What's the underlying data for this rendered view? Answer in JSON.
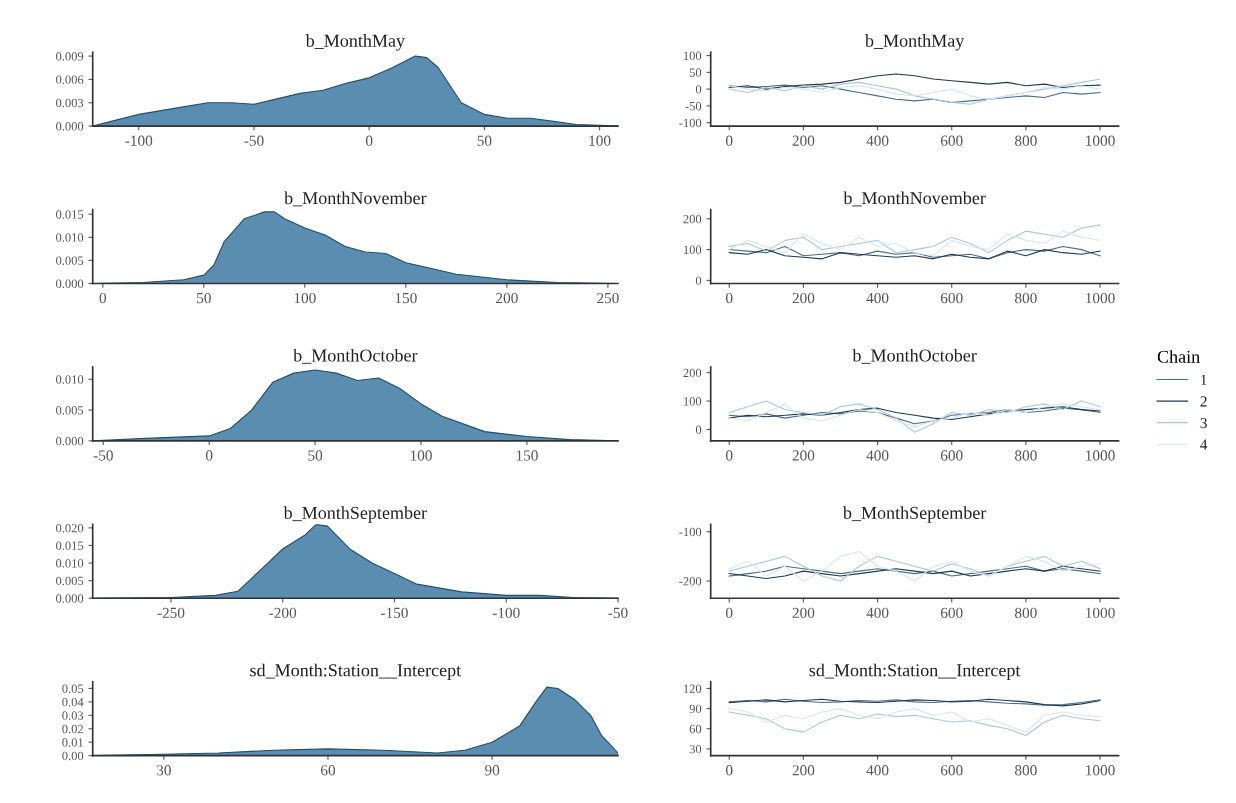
{
  "chart_data": [
    {
      "type": "area",
      "title": "b_MonthMay",
      "x": [
        -120,
        -100,
        -80,
        -70,
        -60,
        -50,
        -40,
        -30,
        -20,
        -10,
        0,
        10,
        20,
        25,
        30,
        40,
        50,
        60,
        70,
        80,
        90,
        100,
        108
      ],
      "series": [
        {
          "color": "#5b8db0",
          "values": [
            0,
            0.0015,
            0.0025,
            0.003,
            0.003,
            0.0028,
            0.0035,
            0.0042,
            0.0046,
            0.0055,
            0.0062,
            0.0075,
            0.009,
            0.0088,
            0.0075,
            0.003,
            0.0015,
            0.001,
            0.001,
            0.0006,
            0.0002,
            0.0001,
            0
          ]
        }
      ],
      "xlim": [
        -120,
        108
      ],
      "xticks": [
        -100,
        -50,
        0,
        50,
        100
      ],
      "ylim": [
        0,
        0.0095
      ],
      "yticks": [
        {
          "value": 0,
          "label": "0.000"
        },
        {
          "value": 0.003,
          "label": "0.003"
        },
        {
          "value": 0.006,
          "label": "0.006"
        },
        {
          "value": 0.009,
          "label": "0.009"
        }
      ]
    },
    {
      "type": "line",
      "title": "b_MonthMay",
      "x": [
        0,
        50,
        100,
        150,
        200,
        250,
        300,
        350,
        400,
        450,
        500,
        550,
        600,
        650,
        700,
        750,
        800,
        850,
        900,
        950,
        1000
      ],
      "series": [
        {
          "name": "1",
          "color": "#4a6d8c",
          "values": [
            10,
            5,
            8,
            12,
            5,
            10,
            0,
            -10,
            -20,
            -30,
            -35,
            -30,
            -40,
            -35,
            -30,
            -25,
            -20,
            -25,
            -10,
            -15,
            -10
          ]
        },
        {
          "name": "2",
          "color": "#1f3a52",
          "values": [
            5,
            10,
            0,
            8,
            12,
            15,
            20,
            30,
            40,
            45,
            40,
            30,
            25,
            20,
            15,
            20,
            10,
            15,
            5,
            10,
            12
          ]
        },
        {
          "name": "3",
          "color": "#a9c7de",
          "values": [
            0,
            -10,
            5,
            -5,
            10,
            0,
            15,
            20,
            10,
            0,
            -20,
            -30,
            -40,
            -45,
            -30,
            -20,
            -10,
            0,
            10,
            20,
            30
          ]
        },
        {
          "name": "4",
          "color": "#d6e6f2",
          "values": [
            10,
            0,
            -5,
            5,
            0,
            -10,
            5,
            10,
            0,
            -15,
            -20,
            -10,
            0,
            -20,
            -30,
            -20,
            -10,
            5,
            0,
            10,
            0
          ]
        }
      ],
      "xlim": [
        -50,
        1050
      ],
      "xticks": [
        0,
        200,
        400,
        600,
        800,
        1000
      ],
      "ylim": [
        -110,
        110
      ],
      "yticks": [
        -100,
        -50,
        0,
        50,
        100
      ],
      "legend": "right",
      "legend_title": "Chain"
    },
    {
      "type": "area",
      "title": "b_MonthNovember",
      "x": [
        -5,
        20,
        40,
        50,
        55,
        60,
        70,
        80,
        85,
        90,
        100,
        110,
        120,
        130,
        140,
        150,
        160,
        175,
        200,
        225,
        255
      ],
      "series": [
        {
          "color": "#5b8db0",
          "values": [
            0,
            0.0002,
            0.0008,
            0.0018,
            0.004,
            0.009,
            0.014,
            0.0155,
            0.0155,
            0.014,
            0.012,
            0.0105,
            0.008,
            0.0068,
            0.0065,
            0.0045,
            0.0035,
            0.002,
            0.0008,
            0.0002,
            0
          ]
        }
      ],
      "xlim": [
        -5,
        255
      ],
      "xticks": [
        0,
        50,
        100,
        150,
        200,
        250
      ],
      "ylim": [
        0,
        0.016
      ],
      "yticks": [
        {
          "value": 0,
          "label": "0.000"
        },
        {
          "value": 0.005,
          "label": "0.005"
        },
        {
          "value": 0.01,
          "label": "0.010"
        },
        {
          "value": 0.015,
          "label": "0.015"
        }
      ]
    },
    {
      "type": "line",
      "title": "b_MonthNovember",
      "x": [
        0,
        50,
        100,
        150,
        200,
        250,
        300,
        350,
        400,
        450,
        500,
        550,
        600,
        650,
        700,
        750,
        800,
        850,
        900,
        950,
        1000
      ],
      "series": [
        {
          "name": "1",
          "color": "#4a6d8c",
          "values": [
            100,
            95,
            90,
            110,
            80,
            85,
            90,
            80,
            95,
            85,
            90,
            75,
            80,
            85,
            70,
            90,
            100,
            95,
            110,
            100,
            80
          ]
        },
        {
          "name": "2",
          "color": "#1f3a52",
          "values": [
            90,
            85,
            100,
            80,
            75,
            70,
            90,
            85,
            80,
            75,
            80,
            70,
            85,
            75,
            70,
            95,
            80,
            100,
            90,
            85,
            95
          ]
        },
        {
          "name": "3",
          "color": "#a9c7de",
          "values": [
            110,
            120,
            95,
            130,
            140,
            100,
            110,
            120,
            130,
            90,
            100,
            110,
            140,
            120,
            90,
            130,
            160,
            150,
            140,
            170,
            180
          ]
        },
        {
          "name": "4",
          "color": "#d6e6f2",
          "values": [
            100,
            130,
            110,
            90,
            150,
            120,
            100,
            140,
            110,
            120,
            90,
            80,
            130,
            110,
            100,
            150,
            130,
            120,
            160,
            140,
            130
          ]
        }
      ],
      "xlim": [
        -50,
        1050
      ],
      "xticks": [
        0,
        200,
        400,
        600,
        800,
        1000
      ],
      "ylim": [
        -10,
        230
      ],
      "yticks": [
        0,
        100,
        200
      ]
    },
    {
      "type": "area",
      "title": "b_MonthOctober",
      "x": [
        -55,
        -30,
        0,
        10,
        20,
        30,
        40,
        50,
        60,
        70,
        80,
        90,
        100,
        110,
        130,
        150,
        170,
        193
      ],
      "series": [
        {
          "color": "#5b8db0",
          "values": [
            0,
            0.0004,
            0.0008,
            0.002,
            0.005,
            0.0095,
            0.011,
            0.0115,
            0.011,
            0.0098,
            0.0102,
            0.0085,
            0.006,
            0.004,
            0.0015,
            0.0007,
            0.0002,
            0
          ]
        }
      ],
      "xlim": [
        -55,
        193
      ],
      "xticks": [
        -50,
        0,
        50,
        100,
        150
      ],
      "ylim": [
        0,
        0.012
      ],
      "yticks": [
        {
          "value": 0,
          "label": "0.000"
        },
        {
          "value": 0.005,
          "label": "0.005"
        },
        {
          "value": 0.01,
          "label": "0.010"
        }
      ]
    },
    {
      "type": "line",
      "title": "b_MonthOctober",
      "x": [
        0,
        50,
        100,
        150,
        200,
        250,
        300,
        350,
        400,
        450,
        500,
        550,
        600,
        650,
        700,
        750,
        800,
        850,
        900,
        950,
        1000
      ],
      "series": [
        {
          "name": "1",
          "color": "#4a6d8c",
          "values": [
            50,
            45,
            55,
            40,
            50,
            60,
            55,
            65,
            60,
            40,
            20,
            30,
            50,
            55,
            60,
            70,
            60,
            65,
            75,
            70,
            60
          ]
        },
        {
          "name": "2",
          "color": "#1f3a52",
          "values": [
            40,
            50,
            45,
            50,
            55,
            50,
            60,
            70,
            75,
            60,
            50,
            40,
            35,
            45,
            55,
            65,
            70,
            75,
            80,
            70,
            65
          ]
        },
        {
          "name": "3",
          "color": "#a9c7de",
          "values": [
            60,
            80,
            100,
            70,
            60,
            50,
            80,
            90,
            70,
            40,
            -10,
            20,
            60,
            50,
            70,
            60,
            80,
            90,
            70,
            100,
            80
          ]
        },
        {
          "name": "4",
          "color": "#d6e6f2",
          "values": [
            40,
            30,
            60,
            90,
            40,
            30,
            50,
            70,
            60,
            30,
            10,
            30,
            40,
            60,
            50,
            70,
            60,
            80,
            90,
            80,
            70
          ]
        }
      ],
      "xlim": [
        -50,
        1050
      ],
      "xticks": [
        0,
        200,
        400,
        600,
        800,
        1000
      ],
      "ylim": [
        -40,
        220
      ],
      "yticks": [
        0,
        100,
        200
      ]
    },
    {
      "type": "area",
      "title": "b_MonthSeptember",
      "x": [
        -285,
        -250,
        -230,
        -220,
        -210,
        -200,
        -190,
        -185,
        -180,
        -170,
        -160,
        -150,
        -140,
        -120,
        -100,
        -85,
        -70,
        -50
      ],
      "series": [
        {
          "color": "#5b8db0",
          "values": [
            0,
            0.0002,
            0.0008,
            0.002,
            0.008,
            0.014,
            0.018,
            0.021,
            0.0205,
            0.014,
            0.01,
            0.007,
            0.004,
            0.0018,
            0.0008,
            0.0008,
            0.0002,
            0
          ]
        }
      ],
      "xlim": [
        -285,
        -50
      ],
      "xticks": [
        -250,
        -200,
        -150,
        -100,
        -50
      ],
      "ylim": [
        0,
        0.021
      ],
      "yticks": [
        {
          "value": 0,
          "label": "0.000"
        },
        {
          "value": 0.005,
          "label": "0.005"
        },
        {
          "value": 0.01,
          "label": "0.010"
        },
        {
          "value": 0.015,
          "label": "0.015"
        },
        {
          "value": 0.02,
          "label": "0.020"
        }
      ]
    },
    {
      "type": "line",
      "title": "b_MonthSeptember",
      "x": [
        0,
        50,
        100,
        150,
        200,
        250,
        300,
        350,
        400,
        450,
        500,
        550,
        600,
        650,
        700,
        750,
        800,
        850,
        900,
        950,
        1000
      ],
      "series": [
        {
          "name": "1",
          "color": "#4a6d8c",
          "values": [
            -190,
            -185,
            -180,
            -170,
            -175,
            -180,
            -185,
            -180,
            -175,
            -180,
            -185,
            -180,
            -190,
            -185,
            -180,
            -175,
            -170,
            -180,
            -175,
            -180,
            -185
          ]
        },
        {
          "name": "2",
          "color": "#1f3a52",
          "values": [
            -185,
            -190,
            -195,
            -190,
            -180,
            -185,
            -190,
            -185,
            -180,
            -175,
            -180,
            -185,
            -180,
            -190,
            -185,
            -180,
            -175,
            -180,
            -170,
            -175,
            -180
          ]
        },
        {
          "name": "3",
          "color": "#a9c7de",
          "values": [
            -180,
            -170,
            -160,
            -150,
            -170,
            -190,
            -200,
            -170,
            -150,
            -160,
            -170,
            -180,
            -165,
            -175,
            -190,
            -170,
            -160,
            -150,
            -170,
            -160,
            -175
          ]
        },
        {
          "name": "4",
          "color": "#d6e6f2",
          "values": [
            -175,
            -160,
            -190,
            -170,
            -200,
            -180,
            -150,
            -140,
            -170,
            -180,
            -200,
            -170,
            -160,
            -180,
            -190,
            -170,
            -150,
            -160,
            -180,
            -170,
            -165
          ]
        }
      ],
      "xlim": [
        -50,
        1050
      ],
      "xticks": [
        0,
        200,
        400,
        600,
        800,
        1000
      ],
      "ylim": [
        -235,
        -85
      ],
      "yticks": [
        -200,
        -100
      ]
    },
    {
      "type": "area",
      "title": "sd_Month:Station__Intercept",
      "x": [
        17,
        30,
        40,
        50,
        60,
        70,
        80,
        85,
        90,
        95,
        98,
        100,
        102,
        105,
        108,
        110,
        113
      ],
      "series": [
        {
          "color": "#5b8db0",
          "values": [
            0,
            0.001,
            0.002,
            0.004,
            0.005,
            0.004,
            0.002,
            0.004,
            0.01,
            0.022,
            0.04,
            0.051,
            0.05,
            0.042,
            0.03,
            0.015,
            0.002
          ]
        }
      ],
      "xlim": [
        17,
        113
      ],
      "xticks": [
        30,
        60,
        90
      ],
      "ylim": [
        0,
        0.055
      ],
      "yticks": [
        {
          "value": 0,
          "label": "0.00"
        },
        {
          "value": 0.01,
          "label": "0.01"
        },
        {
          "value": 0.02,
          "label": "0.02"
        },
        {
          "value": 0.03,
          "label": "0.03"
        },
        {
          "value": 0.04,
          "label": "0.04"
        },
        {
          "value": 0.05,
          "label": "0.05"
        }
      ]
    },
    {
      "type": "line",
      "title": "sd_Month:Station__Intercept",
      "x": [
        0,
        50,
        100,
        150,
        200,
        250,
        300,
        350,
        400,
        450,
        500,
        550,
        600,
        650,
        700,
        750,
        800,
        850,
        900,
        950,
        1000
      ],
      "series": [
        {
          "name": "1",
          "color": "#4a6d8c",
          "values": [
            100,
            102,
            100,
            104,
            101,
            99,
            100,
            102,
            101,
            103,
            100,
            99,
            101,
            102,
            100,
            98,
            97,
            95,
            96,
            99,
            103
          ]
        },
        {
          "name": "2",
          "color": "#1f3a52",
          "values": [
            99,
            101,
            103,
            100,
            102,
            104,
            101,
            100,
            99,
            101,
            103,
            102,
            100,
            101,
            104,
            102,
            100,
            96,
            94,
            97,
            102
          ]
        },
        {
          "name": "3",
          "color": "#a9c7de",
          "values": [
            85,
            80,
            75,
            60,
            55,
            70,
            80,
            75,
            82,
            78,
            80,
            75,
            70,
            72,
            65,
            60,
            50,
            70,
            80,
            75,
            72
          ]
        },
        {
          "name": "4",
          "color": "#d6e6f2",
          "values": [
            90,
            85,
            70,
            80,
            75,
            85,
            90,
            80,
            75,
            85,
            90,
            80,
            85,
            70,
            75,
            65,
            55,
            80,
            85,
            80,
            78
          ]
        }
      ],
      "xlim": [
        -50,
        1050
      ],
      "xticks": [
        0,
        200,
        400,
        600,
        800,
        1000
      ],
      "ylim": [
        20,
        130
      ],
      "yticks": [
        30,
        60,
        90,
        120
      ]
    }
  ]
}
